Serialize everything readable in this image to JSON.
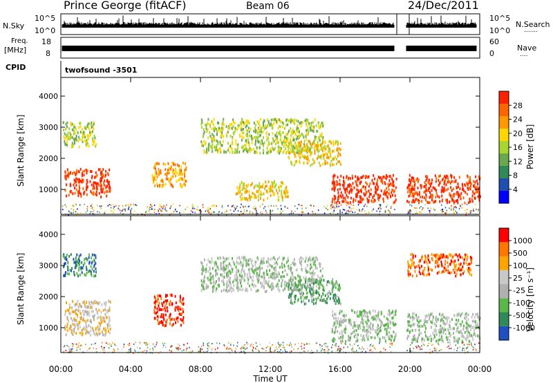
{
  "header": {
    "station": "Prince George (fitACF)",
    "beam": "Beam 06",
    "date": "24/Dec/2011"
  },
  "strip_labels": {
    "nsky": "N.Sky",
    "freq_top": "Freq.",
    "freq_unit": "[MHz]",
    "cpid": "CPID",
    "nsearch": "N.Search",
    "nave": "Nave",
    "dots_nsearch": ".......",
    "dots_nave": "...."
  },
  "strip_ticks": {
    "noise_left_top": "10^5",
    "noise_left_bottom": "10^0",
    "noise_right_top": "10^5",
    "noise_right_bottom": "10^0",
    "freq_left_top": "18",
    "freq_left_bottom": "8",
    "nave_right_top": "60",
    "nave_right_bottom": "0"
  },
  "cpid_text": "twofsound  -3501",
  "colors": {
    "power": [
      "#0000ff",
      "#1f4fb0",
      "#2e8b57",
      "#6aa84f",
      "#a8d530",
      "#ffd700",
      "#ff9900",
      "#ff6600",
      "#ff2200"
    ],
    "velocity": [
      "#2050c0",
      "#2e8b57",
      "#5ab84a",
      "#b0b0b0",
      "#c8c8c8",
      "#ffa500",
      "#ff7700",
      "#ff0000"
    ]
  },
  "chart_data": [
    {
      "type": "heatmap",
      "name_panel": "power",
      "ylabel": "Slant Range [km]",
      "yticks": [
        "1000",
        "2000",
        "3000",
        "4000"
      ],
      "ylim": [
        200,
        4600
      ],
      "xlim": [
        0,
        24
      ],
      "colorbar": {
        "label": "Power [dB]",
        "ticks": [
          "4",
          "8",
          "12",
          "16",
          "20",
          "24",
          "28"
        ],
        "range": [
          0,
          32
        ]
      },
      "regions": [
        {
          "t0": 0.2,
          "t1": 2.8,
          "r0": 800,
          "r1": 1700,
          "level": 8
        },
        {
          "t0": 0.1,
          "t1": 2.0,
          "r0": 2400,
          "r1": 3200,
          "level": 4
        },
        {
          "t0": 5.2,
          "t1": 7.2,
          "r0": 1100,
          "r1": 1900,
          "level": 6
        },
        {
          "t0": 8.0,
          "t1": 15.0,
          "r0": 2200,
          "r1": 3300,
          "level": 4
        },
        {
          "t0": 10.0,
          "t1": 13.0,
          "r0": 700,
          "r1": 1300,
          "level": 5
        },
        {
          "t0": 13.0,
          "t1": 16.0,
          "r0": 1800,
          "r1": 2600,
          "level": 5
        },
        {
          "t0": 15.5,
          "t1": 19.2,
          "r0": 600,
          "r1": 1500,
          "level": 8
        },
        {
          "t0": 19.8,
          "t1": 24,
          "r0": 600,
          "r1": 1500,
          "level": 8
        }
      ]
    },
    {
      "type": "heatmap",
      "name_panel": "velocity",
      "ylabel": "Slant Range [km]",
      "xlabel": "Time UT",
      "yticks": [
        "1000",
        "2000",
        "3000",
        "4000"
      ],
      "xticks": [
        "00:00",
        "04:00",
        "08:00",
        "12:00",
        "16:00",
        "20:00",
        "00:00"
      ],
      "ylim": [
        200,
        4600
      ],
      "xlim": [
        0,
        24
      ],
      "colorbar": {
        "label": "Velocity [m s⁻¹]",
        "ticks": [
          "1000",
          "500",
          "100",
          "25",
          "-25",
          "-100",
          "-500",
          "-1000"
        ],
        "range": [
          -1000,
          1000
        ]
      },
      "regions": [
        {
          "t0": 0.2,
          "t1": 2.8,
          "r0": 800,
          "r1": 1900,
          "level": 4
        },
        {
          "t0": 0.1,
          "t1": 2.0,
          "r0": 2700,
          "r1": 3400,
          "level": 1
        },
        {
          "t0": 5.3,
          "t1": 7.0,
          "r0": 1100,
          "r1": 2100,
          "level": 7
        },
        {
          "t0": 8.0,
          "t1": 15.0,
          "r0": 2200,
          "r1": 3300,
          "level": 3
        },
        {
          "t0": 13.0,
          "t1": 16.0,
          "r0": 1800,
          "r1": 2600,
          "level": 2
        },
        {
          "t0": 15.5,
          "t1": 19.2,
          "r0": 600,
          "r1": 1600,
          "level": 3
        },
        {
          "t0": 19.8,
          "t1": 24,
          "r0": 600,
          "r1": 1500,
          "level": 3
        },
        {
          "t0": 19.8,
          "t1": 23.5,
          "r0": 2700,
          "r1": 3400,
          "level": 6
        }
      ]
    }
  ]
}
